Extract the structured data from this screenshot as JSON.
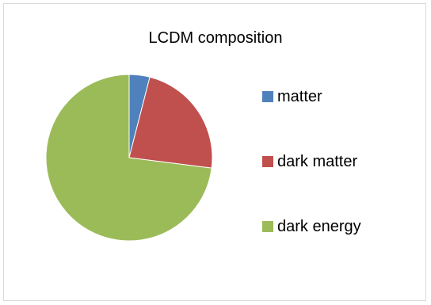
{
  "chart_data": {
    "type": "pie",
    "title": "LCDM composition",
    "categories": [
      "matter",
      "dark matter",
      "dark energy"
    ],
    "values": [
      4,
      23,
      73
    ],
    "colors": [
      "#4f81bd",
      "#c0504d",
      "#9bbb59"
    ],
    "legend_position": "right",
    "start_angle_deg": 0,
    "direction": "clockwise"
  }
}
